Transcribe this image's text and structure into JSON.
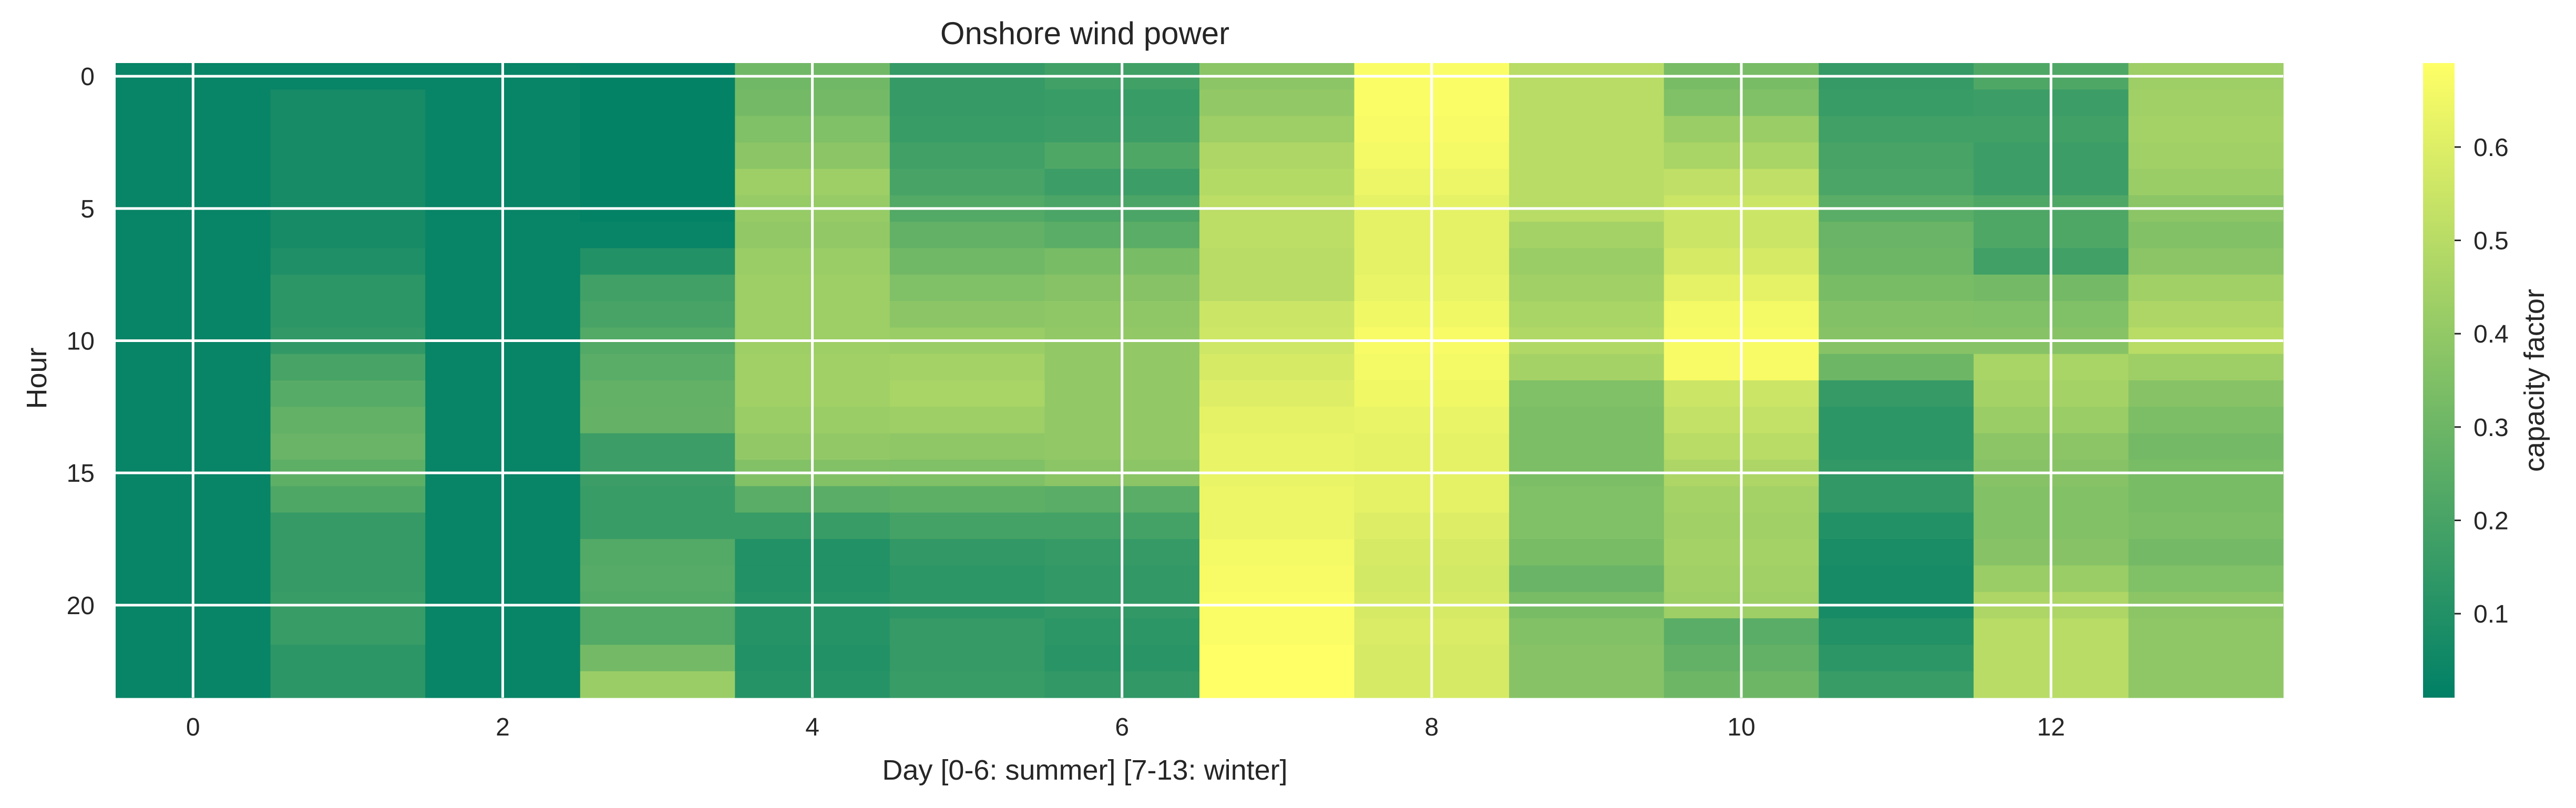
{
  "chart_data": {
    "type": "heatmap",
    "title": "Onshore wind power",
    "xlabel": "Day [0-6: summer] [7-13: winter]",
    "ylabel": "Hour",
    "colorbar_label": "capacity factor",
    "colormap": "summer",
    "colormap_colors": [
      "#008066",
      "#ffff66"
    ],
    "grid": true,
    "x": [
      0,
      1,
      2,
      3,
      4,
      5,
      6,
      7,
      8,
      9,
      10,
      11,
      12,
      13
    ],
    "y": [
      0,
      1,
      2,
      3,
      4,
      5,
      6,
      7,
      8,
      9,
      10,
      11,
      12,
      13,
      14,
      15,
      16,
      17,
      18,
      19,
      20,
      21,
      22,
      23
    ],
    "x_ticks": [
      0,
      2,
      4,
      6,
      8,
      10,
      12
    ],
    "y_ticks": [
      0,
      5,
      10,
      15,
      20
    ],
    "colorbar_ticks": [
      0.1,
      0.2,
      0.3,
      0.4,
      0.5,
      0.6
    ],
    "value_range": [
      0.01,
      0.69
    ],
    "values": [
      [
        0.03,
        0.03,
        0.03,
        0.02,
        0.31,
        0.15,
        0.18,
        0.38,
        0.68,
        0.5,
        0.33,
        0.15,
        0.22,
        0.43
      ],
      [
        0.03,
        0.07,
        0.03,
        0.02,
        0.32,
        0.15,
        0.16,
        0.4,
        0.68,
        0.5,
        0.35,
        0.16,
        0.17,
        0.44
      ],
      [
        0.03,
        0.07,
        0.03,
        0.02,
        0.35,
        0.16,
        0.17,
        0.43,
        0.67,
        0.5,
        0.42,
        0.18,
        0.18,
        0.45
      ],
      [
        0.03,
        0.07,
        0.03,
        0.02,
        0.38,
        0.18,
        0.22,
        0.47,
        0.66,
        0.5,
        0.46,
        0.2,
        0.17,
        0.44
      ],
      [
        0.03,
        0.07,
        0.03,
        0.02,
        0.43,
        0.2,
        0.17,
        0.49,
        0.64,
        0.5,
        0.52,
        0.21,
        0.17,
        0.42
      ],
      [
        0.03,
        0.07,
        0.03,
        0.02,
        0.41,
        0.23,
        0.21,
        0.51,
        0.62,
        0.5,
        0.55,
        0.25,
        0.22,
        0.38
      ],
      [
        0.03,
        0.07,
        0.03,
        0.03,
        0.4,
        0.27,
        0.25,
        0.51,
        0.62,
        0.45,
        0.55,
        0.29,
        0.22,
        0.36
      ],
      [
        0.03,
        0.09,
        0.03,
        0.1,
        0.42,
        0.31,
        0.33,
        0.5,
        0.62,
        0.42,
        0.58,
        0.3,
        0.18,
        0.38
      ],
      [
        0.03,
        0.13,
        0.03,
        0.18,
        0.43,
        0.35,
        0.37,
        0.5,
        0.63,
        0.44,
        0.62,
        0.33,
        0.32,
        0.44
      ],
      [
        0.03,
        0.13,
        0.03,
        0.2,
        0.43,
        0.38,
        0.39,
        0.55,
        0.65,
        0.46,
        0.66,
        0.36,
        0.35,
        0.47
      ],
      [
        0.03,
        0.14,
        0.03,
        0.23,
        0.43,
        0.42,
        0.4,
        0.56,
        0.67,
        0.48,
        0.67,
        0.37,
        0.37,
        0.5
      ],
      [
        0.03,
        0.2,
        0.03,
        0.25,
        0.44,
        0.45,
        0.4,
        0.58,
        0.66,
        0.45,
        0.67,
        0.3,
        0.46,
        0.43
      ],
      [
        0.03,
        0.24,
        0.03,
        0.27,
        0.44,
        0.46,
        0.4,
        0.6,
        0.65,
        0.35,
        0.55,
        0.15,
        0.45,
        0.37
      ],
      [
        0.03,
        0.27,
        0.03,
        0.28,
        0.42,
        0.43,
        0.4,
        0.62,
        0.63,
        0.34,
        0.53,
        0.13,
        0.42,
        0.34
      ],
      [
        0.03,
        0.29,
        0.03,
        0.17,
        0.4,
        0.39,
        0.4,
        0.63,
        0.62,
        0.34,
        0.5,
        0.13,
        0.38,
        0.32
      ],
      [
        0.03,
        0.26,
        0.03,
        0.17,
        0.36,
        0.35,
        0.38,
        0.63,
        0.62,
        0.34,
        0.47,
        0.14,
        0.37,
        0.33
      ],
      [
        0.03,
        0.22,
        0.03,
        0.16,
        0.25,
        0.26,
        0.25,
        0.64,
        0.62,
        0.35,
        0.45,
        0.14,
        0.36,
        0.33
      ],
      [
        0.03,
        0.15,
        0.03,
        0.16,
        0.16,
        0.19,
        0.19,
        0.64,
        0.6,
        0.35,
        0.44,
        0.1,
        0.36,
        0.34
      ],
      [
        0.03,
        0.15,
        0.03,
        0.23,
        0.1,
        0.14,
        0.15,
        0.66,
        0.58,
        0.33,
        0.45,
        0.08,
        0.37,
        0.32
      ],
      [
        0.03,
        0.15,
        0.03,
        0.24,
        0.1,
        0.13,
        0.14,
        0.67,
        0.57,
        0.29,
        0.44,
        0.07,
        0.42,
        0.35
      ],
      [
        0.03,
        0.16,
        0.03,
        0.23,
        0.11,
        0.13,
        0.14,
        0.68,
        0.58,
        0.33,
        0.43,
        0.07,
        0.47,
        0.38
      ],
      [
        0.03,
        0.16,
        0.03,
        0.23,
        0.11,
        0.15,
        0.13,
        0.68,
        0.59,
        0.36,
        0.25,
        0.1,
        0.5,
        0.39
      ],
      [
        0.03,
        0.13,
        0.03,
        0.32,
        0.1,
        0.15,
        0.12,
        0.69,
        0.58,
        0.37,
        0.27,
        0.13,
        0.5,
        0.39
      ],
      [
        0.03,
        0.13,
        0.03,
        0.42,
        0.11,
        0.16,
        0.14,
        0.69,
        0.58,
        0.37,
        0.3,
        0.16,
        0.5,
        0.39
      ]
    ]
  }
}
